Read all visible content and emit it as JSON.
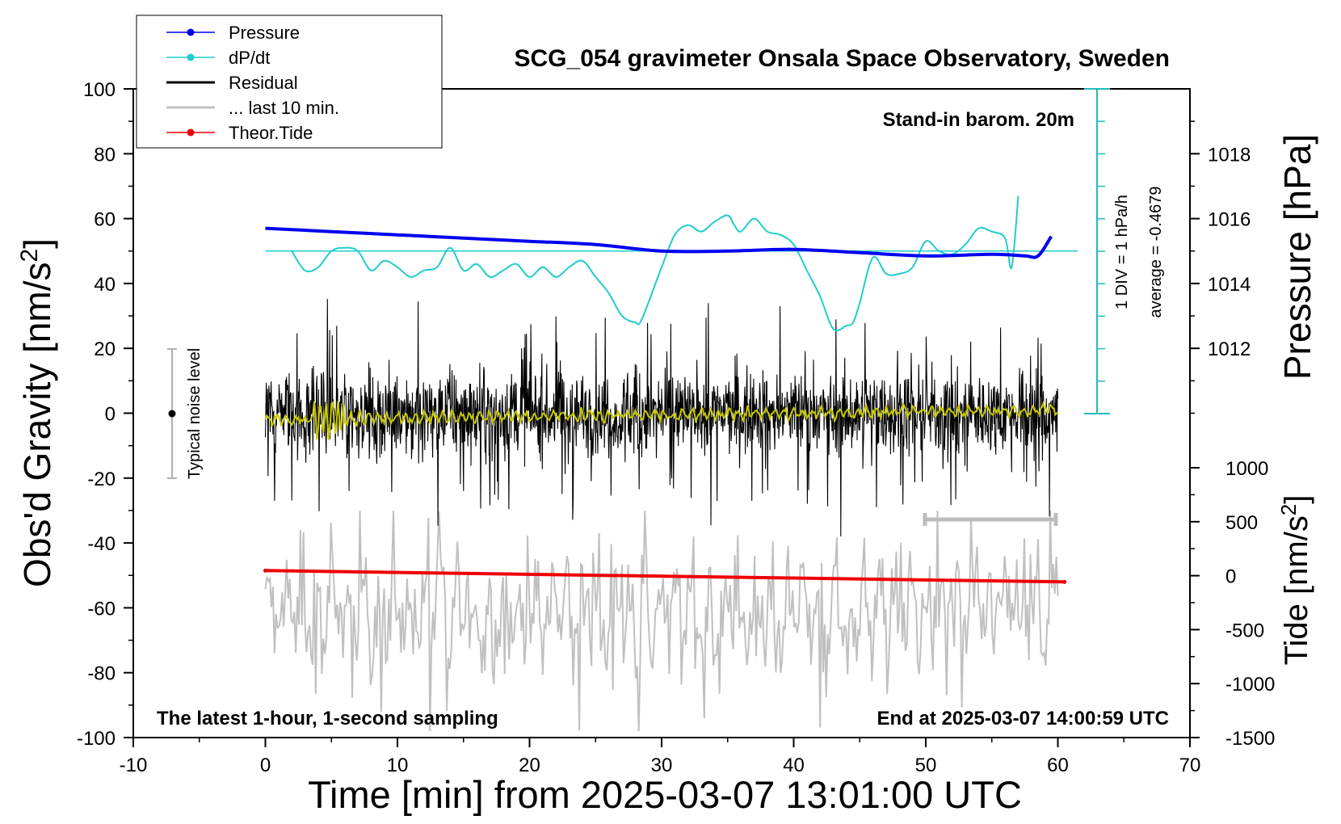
{
  "chart_data": {
    "type": "line",
    "title": "SCG_054 gravimeter Onsala Space Observatory, Sweden",
    "xlabel": "Time [min] from 2025-03-07 13:01:00 UTC",
    "xlim": [
      -10,
      70
    ],
    "x_ticks": [
      "-10",
      "0",
      "10",
      "20",
      "30",
      "40",
      "50",
      "60",
      "70"
    ],
    "left_axis": {
      "label_main": "Obs'd Gravity [nm/s",
      "label_sup": "2",
      "label_end": "]",
      "ylim": [
        -100,
        100
      ],
      "ticks": [
        "100",
        "80",
        "60",
        "40",
        "20",
        "0",
        "-20",
        "-40",
        "-60",
        "-80",
        "-100"
      ]
    },
    "pressure_axis": {
      "label": "Pressure [hPa]",
      "range_hpa": [
        1010,
        1020
      ],
      "ticks": [
        "1018",
        "1016",
        "1014",
        "1012"
      ]
    },
    "tide_axis": {
      "label_main": "Tide [nm/s",
      "label_sup": "2",
      "label_end": "]",
      "range": [
        -1500,
        1000
      ],
      "ticks": [
        "1000",
        "500",
        "0",
        "-500",
        "-1000",
        "-1500"
      ]
    },
    "dpdt_axis": {
      "label": "1 DIV = 1 hPa/h",
      "average_label": "average = -0.4679",
      "average": -0.4679
    },
    "annotations": {
      "barometer": "Stand-in barom. 20m",
      "sampling": "The latest 1-hour, 1-second sampling",
      "end_time": "End at 2025-03-07 14:00:59 UTC",
      "noise": "Typical noise level",
      "noise_range": [
        -20,
        20
      ]
    },
    "legend": [
      "Pressure",
      "dP/dt",
      "Residual",
      "... last 10 min.",
      "Theor.Tide"
    ],
    "series": [
      {
        "name": "Pressure",
        "color": "#0000ee",
        "unit": "hPa",
        "x": [
          0,
          5,
          10,
          15,
          20,
          25,
          30,
          35,
          40,
          45,
          50,
          55,
          57.5,
          58.5,
          59.5
        ],
        "values": [
          1015.7,
          1015.6,
          1015.5,
          1015.4,
          1015.3,
          1015.2,
          1015.0,
          1015.0,
          1015.05,
          1014.95,
          1014.85,
          1014.9,
          1014.85,
          1014.85,
          1015.45
        ]
      },
      {
        "name": "dP/dt",
        "color": "#22cccc",
        "unit": "hPa/h relative to baseline",
        "x": [
          2,
          3,
          4,
          5,
          6,
          7,
          8,
          9,
          10,
          11,
          12,
          13,
          14,
          15,
          16,
          17,
          18,
          19,
          20,
          21,
          22,
          23,
          24,
          25,
          26,
          27,
          28,
          28.5,
          30,
          31,
          32,
          33,
          34,
          35,
          35.5,
          36,
          37,
          38,
          39,
          40,
          41,
          42,
          43,
          44,
          44.5,
          45,
          46,
          47,
          48,
          49,
          50,
          51,
          52,
          53,
          54,
          55,
          56,
          56.5,
          57
        ],
        "values": [
          0,
          -0.6,
          -0.5,
          0,
          0.1,
          0,
          -0.6,
          -0.3,
          -0.5,
          -0.8,
          -0.6,
          -0.5,
          0.1,
          -0.6,
          -0.4,
          -0.8,
          -0.6,
          -0.4,
          -0.8,
          -0.5,
          -0.8,
          -0.5,
          -0.3,
          -0.8,
          -1.3,
          -2.0,
          -2.2,
          -2.1,
          -0.5,
          0.5,
          0.8,
          0.6,
          0.9,
          1.1,
          0.8,
          0.6,
          1.0,
          0.6,
          0.5,
          0.2,
          -0.6,
          -1.4,
          -2.4,
          -2.3,
          -2.2,
          -1.6,
          -0.2,
          -0.7,
          -0.7,
          -0.5,
          0.3,
          0.0,
          -0.1,
          0.2,
          0.7,
          0.6,
          0.4,
          -0.5,
          1.7
        ]
      },
      {
        "name": "Residual",
        "color": "#000000",
        "unit": "nm/s2",
        "x_range": [
          0,
          60
        ],
        "amplitude_envelope": [
          -38,
          38
        ]
      },
      {
        "name": "... last 10 min.",
        "color": "#c0c0c0",
        "unit": "nm/s2",
        "x_range": [
          50,
          60
        ]
      },
      {
        "name": "Theor.Tide",
        "color": "#ee0000",
        "unit": "nm/s2",
        "x": [
          0,
          60.5
        ],
        "values": [
          47,
          -58
        ]
      }
    ]
  }
}
